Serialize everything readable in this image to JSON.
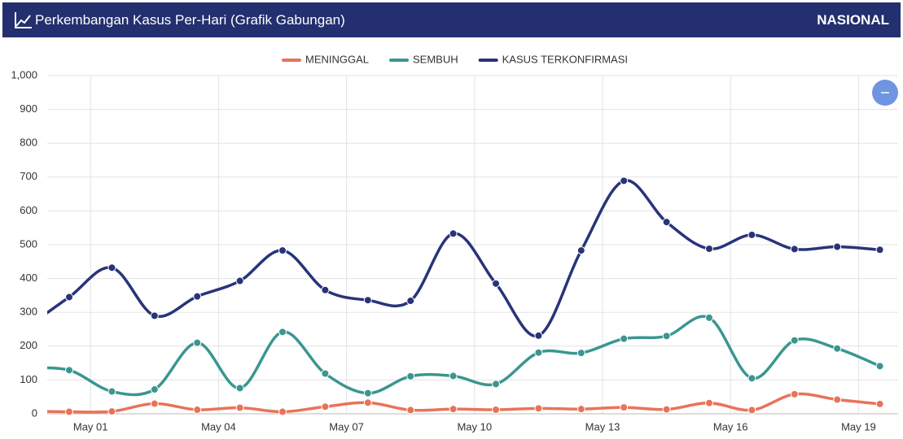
{
  "header": {
    "title": "Perkembangan Kasus Per-Hari (Grafik Gabungan)",
    "badge": "NASIONAL"
  },
  "chart_data": {
    "type": "line",
    "categories": [
      null,
      "May 01",
      null,
      null,
      "May 04",
      null,
      null,
      "May 07",
      null,
      null,
      "May 10",
      null,
      null,
      "May 13",
      null,
      null,
      "May 16",
      null,
      null,
      "May 19",
      null
    ],
    "series": [
      {
        "name": "MENINGGAL",
        "color": "#e8735a",
        "values": [
          8,
          6,
          7,
          30,
          12,
          18,
          6,
          21,
          33,
          11,
          14,
          12,
          16,
          14,
          19,
          13,
          32,
          11,
          58,
          42,
          29
        ]
      },
      {
        "name": "SEMBUH",
        "color": "#3a9690",
        "values": [
          135,
          129,
          66,
          72,
          210,
          76,
          242,
          119,
          61,
          111,
          112,
          88,
          181,
          180,
          222,
          230,
          284,
          105,
          217,
          193,
          141
        ]
      },
      {
        "name": "KASUS TERKONFIRMASI",
        "color": "#283479",
        "values": [
          255,
          345,
          432,
          290,
          347,
          393,
          483,
          366,
          336,
          334,
          533,
          385,
          231,
          483,
          689,
          567,
          488,
          529,
          487,
          494,
          485
        ]
      }
    ],
    "ylim": [
      0,
      1000
    ],
    "yticks": [
      0,
      100,
      200,
      300,
      400,
      500,
      600,
      700,
      800,
      900,
      {
        "value": 1000,
        "label": "1,000"
      }
    ],
    "grid": true,
    "legend": "top"
  }
}
